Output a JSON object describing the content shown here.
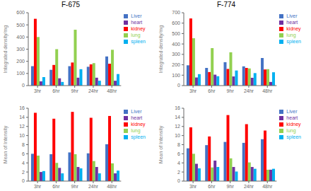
{
  "chart_data": [
    {
      "type": "bar",
      "title": "F-675",
      "categories": [
        "3hr",
        "6hr",
        "9hr",
        "24hr",
        "48hr"
      ],
      "series": [
        {
          "name": "Liver",
          "color": "#4472C4",
          "values": [
            160,
            130,
            160,
            155,
            240
          ]
        },
        {
          "name": "kidney",
          "color": "#FF0000",
          "values": [
            550,
            170,
            190,
            175,
            180
          ]
        },
        {
          "name": "lung",
          "color": "#92D050",
          "values": [
            400,
            300,
            460,
            185,
            295
          ]
        },
        {
          "name": "heart",
          "color": "#7030A0",
          "values": [
            35,
            60,
            65,
            65,
            40
          ]
        },
        {
          "name": "spleen",
          "color": "#00B0F0",
          "values": [
            70,
            30,
            135,
            40,
            95
          ]
        }
      ],
      "ylabel": "Integrated density/mg",
      "ylim": [
        0,
        600
      ],
      "yticks": [
        0,
        100,
        200,
        300,
        400,
        500,
        600
      ],
      "legend": "right",
      "grid": false
    },
    {
      "type": "bar",
      "title": "F-774",
      "categories": [
        "3hr",
        "6hr",
        "9hr",
        "24hr",
        "48hr"
      ],
      "series": [
        {
          "name": "Liver",
          "color": "#4472C4",
          "values": [
            195,
            170,
            225,
            185,
            265
          ]
        },
        {
          "name": "kidney",
          "color": "#FF0000",
          "values": [
            645,
            130,
            160,
            170,
            155
          ]
        },
        {
          "name": "lung",
          "color": "#92D050",
          "values": [
            455,
            360,
            320,
            165,
            158
          ]
        },
        {
          "name": "heart",
          "color": "#7030A0",
          "values": [
            78,
            105,
            88,
            75,
            35
          ]
        },
        {
          "name": "spleen",
          "color": "#00B0F0",
          "values": [
            110,
            90,
            145,
            120,
            128
          ]
        }
      ],
      "ylabel": "Integrated density/mg",
      "ylim": [
        0,
        700
      ],
      "yticks": [
        0,
        100,
        200,
        300,
        400,
        500,
        600,
        700
      ],
      "legend": "right",
      "grid": false
    },
    {
      "type": "bar",
      "categories": [
        "3hr",
        "6hr",
        "9hr",
        "24hr",
        "48hr"
      ],
      "series": [
        {
          "name": "Liver",
          "color": "#4472C4",
          "values": [
            6.0,
            5.9,
            6.3,
            6.1,
            8.1
          ]
        },
        {
          "name": "kidney",
          "color": "#FF0000",
          "values": [
            15.0,
            13.7,
            15.2,
            13.9,
            14.3
          ]
        },
        {
          "name": "lung",
          "color": "#92D050",
          "values": [
            5.6,
            4.0,
            5.9,
            4.4,
            3.9
          ]
        },
        {
          "name": "heart",
          "color": "#7030A0",
          "values": [
            2.0,
            2.9,
            3.1,
            3.1,
            1.7
          ]
        },
        {
          "name": "spleen",
          "color": "#00B0F0",
          "values": [
            2.2,
            1.7,
            2.8,
            1.7,
            2.3
          ]
        }
      ],
      "ylabel": "Mean of Intensity",
      "ylim": [
        0,
        16
      ],
      "yticks": [
        0,
        2,
        4,
        6,
        8,
        10,
        12,
        14,
        16
      ],
      "legend": "right",
      "grid": false
    },
    {
      "type": "bar",
      "categories": [
        "3hr",
        "6hr",
        "9hr",
        "24hr",
        "48hr"
      ],
      "series": [
        {
          "name": "Liver",
          "color": "#4472C4",
          "values": [
            7.2,
            7.9,
            8.6,
            8.4,
            9.2
          ]
        },
        {
          "name": "kidney",
          "color": "#FF0000",
          "values": [
            11.8,
            9.8,
            14.5,
            12.5,
            11.1
          ]
        },
        {
          "name": "lung",
          "color": "#92D050",
          "values": [
            6.0,
            3.0,
            5.0,
            4.1,
            2.5
          ]
        },
        {
          "name": "heart",
          "color": "#7030A0",
          "values": [
            3.8,
            4.5,
            3.1,
            3.1,
            2.5
          ]
        },
        {
          "name": "spleen",
          "color": "#00B0F0",
          "values": [
            2.8,
            3.1,
            2.1,
            2.7,
            2.7
          ]
        }
      ],
      "ylabel": "Mean of Intensity",
      "ylim": [
        0,
        16
      ],
      "yticks": [
        0,
        2,
        4,
        6,
        8,
        10,
        12,
        14,
        16
      ],
      "legend": "right",
      "grid": false
    }
  ]
}
